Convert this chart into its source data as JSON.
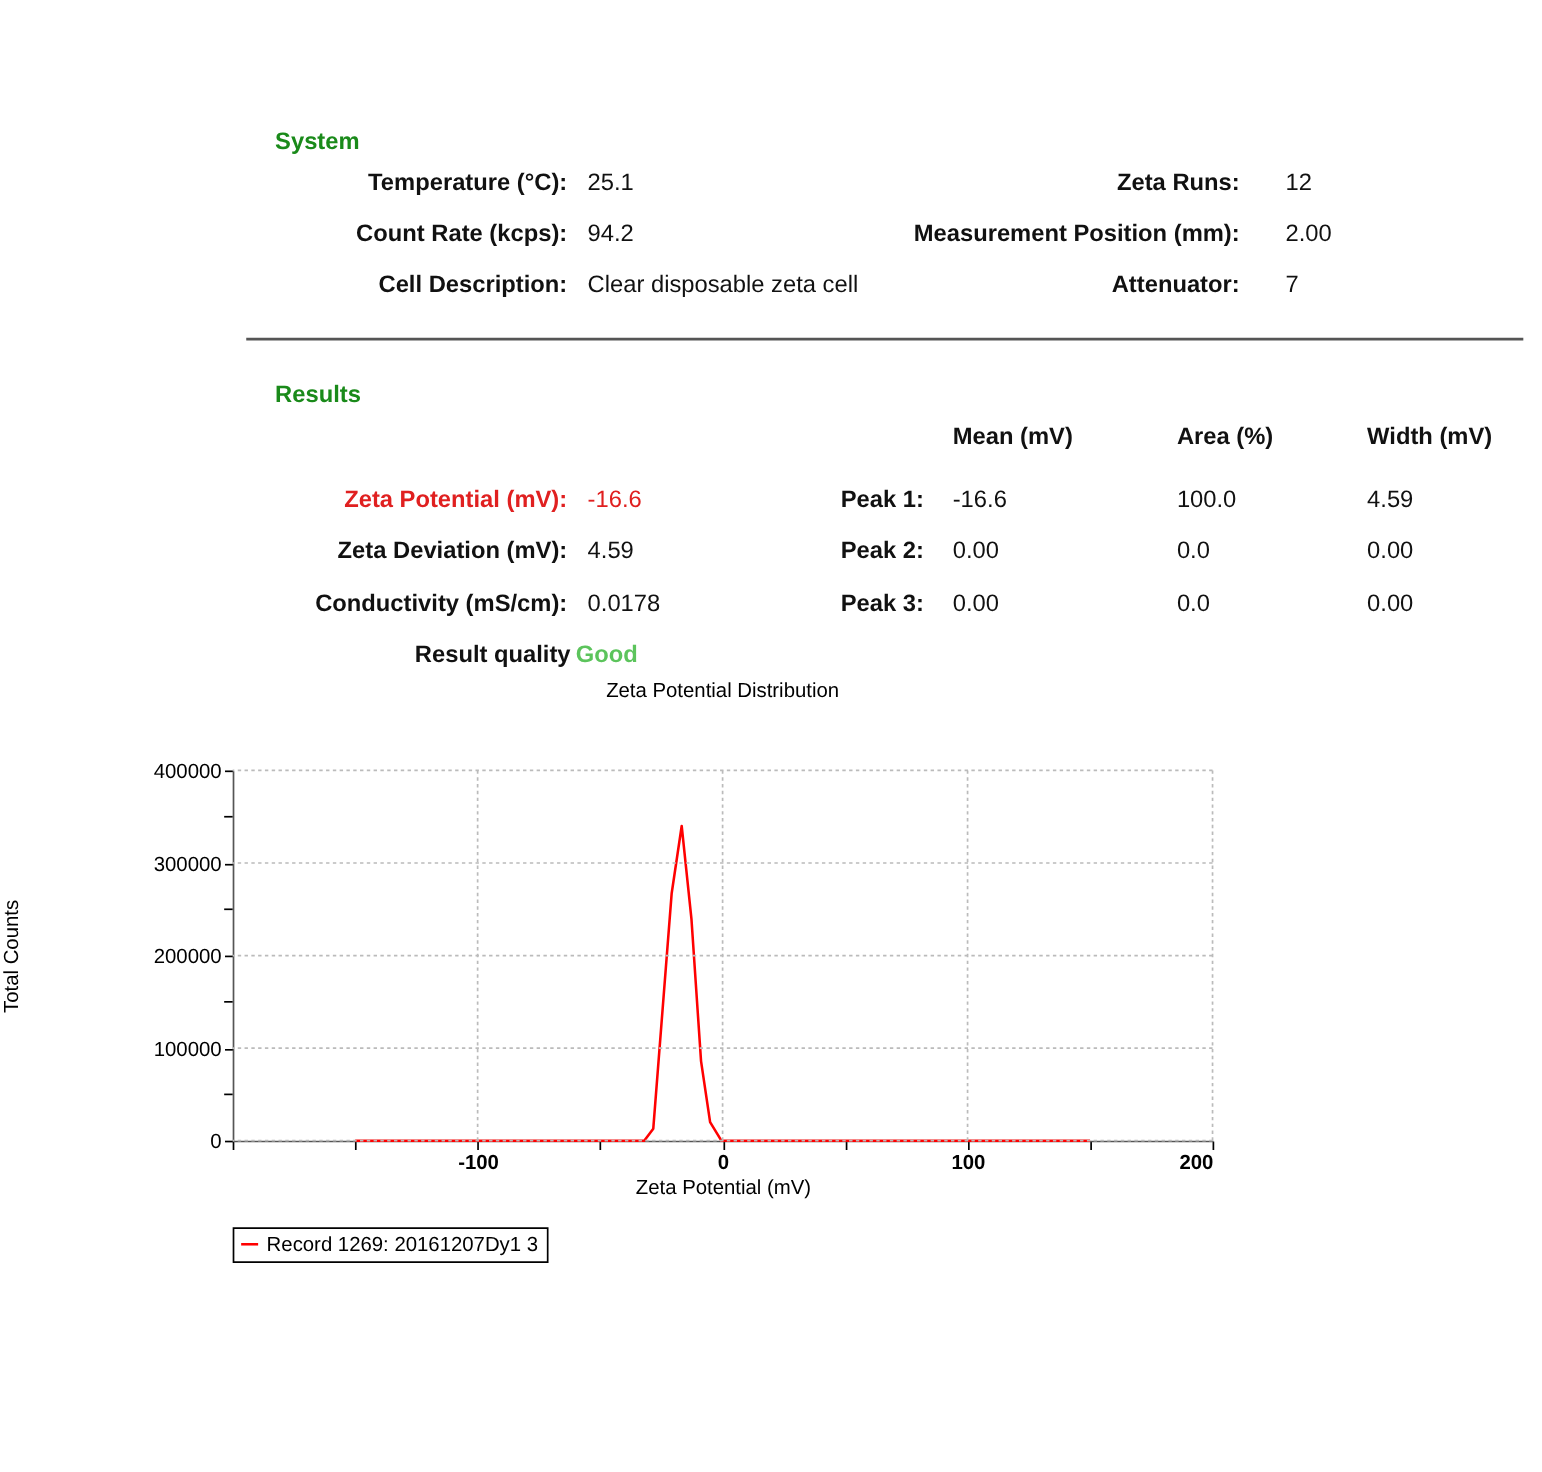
{
  "chart_data": [
    {
      "type": "other",
      "annotations": [
        "System",
        "Temperature (°C):",
        "25.1",
        "Zeta Runs:",
        "12",
        "Count Rate (kcps):",
        "94.2",
        "Measurement Position (mm):",
        "2.00",
        "Cell Description:",
        "Clear disposable zeta cell",
        "Attenuator:",
        "7",
        "Results",
        "Mean (mV)",
        "Area (%)",
        "Width (mV)",
        "Zeta Potential (mV):",
        "-16.6",
        "Peak 1:",
        "-16.6",
        "100.0",
        "4.59",
        "Zeta Deviation (mV):",
        "4.59",
        "Peak 2:",
        "0.00",
        "0.0",
        "0.00",
        "Conductivity (mS/cm):",
        "0.0178",
        "Peak 3:",
        "0.00",
        "0.0",
        "0.00",
        "Result quality",
        "Good"
      ]
    },
    {
      "type": "line",
      "title": "Zeta Potential Distribution",
      "xlabel": "Zeta Potential (mV)",
      "ylabel": "Total Counts",
      "x": [
        -150,
        -32,
        -28.3,
        -20.8,
        -16.7,
        -12.7,
        -8.8,
        -5.1,
        -0.5,
        150
      ],
      "series": [
        {
          "name": "Record 1269: 20161207Dy1 3",
          "color": "#ff0000",
          "values": [
            0,
            0,
            13000,
            267000,
            340000,
            239000,
            86000,
            20000,
            0,
            0
          ]
        }
      ],
      "xlim": [
        -200,
        200
      ],
      "xticks": [
        {
          "value": -200,
          "label": null
        },
        {
          "value": -150,
          "label": null
        },
        -100,
        {
          "value": -50,
          "label": null
        },
        0,
        {
          "value": 50,
          "label": null
        },
        100,
        {
          "value": 150,
          "label": null
        },
        200
      ],
      "ylim": [
        0,
        400000
      ],
      "yticks": [
        0,
        {
          "value": 50000,
          "label": null
        },
        100000,
        {
          "value": 150000,
          "label": null
        },
        200000,
        {
          "value": 250000,
          "label": null
        },
        300000,
        {
          "value": 350000,
          "label": null
        },
        400000
      ],
      "grid": true,
      "legend": "bottom",
      "line_style": "solid"
    }
  ]
}
